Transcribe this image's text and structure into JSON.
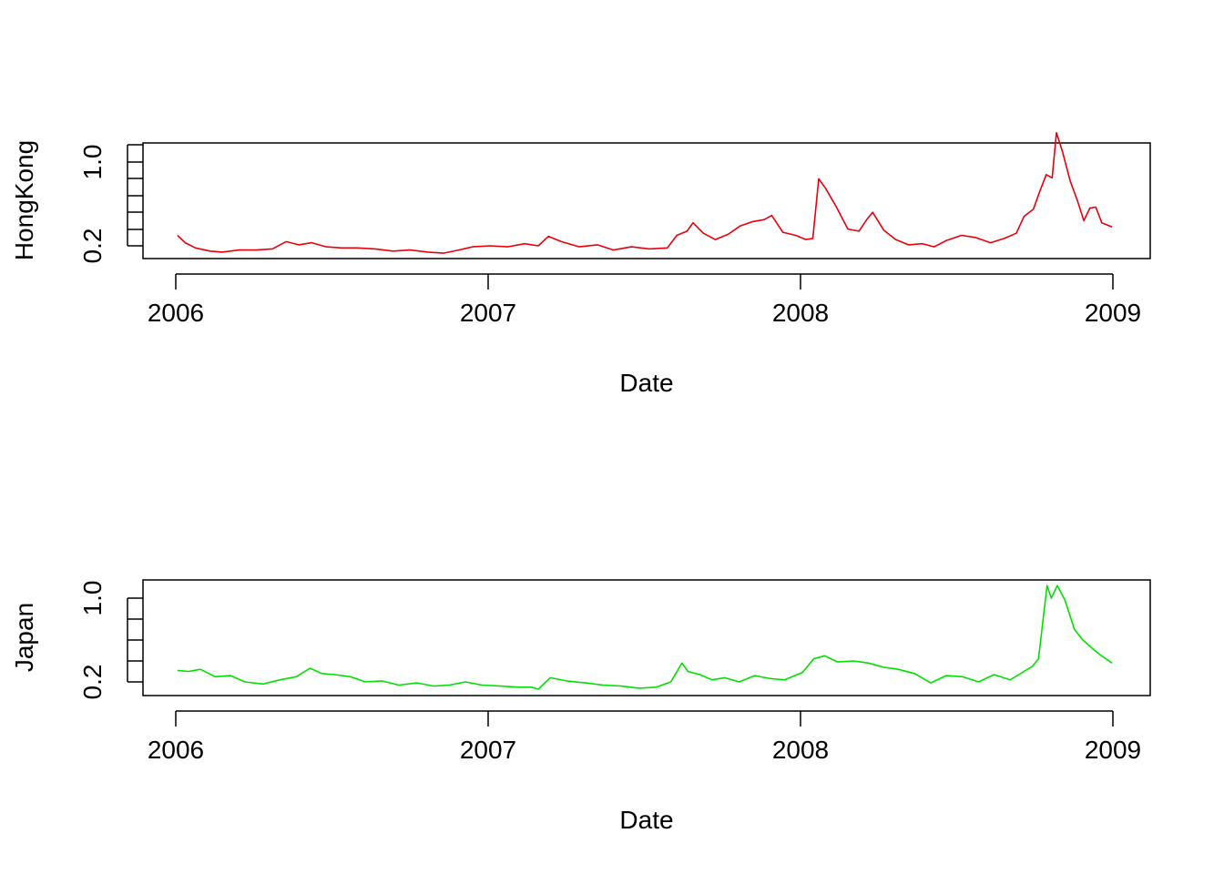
{
  "chart_data": [
    {
      "type": "line",
      "xlabel": "Date",
      "ylabel": "HongKong",
      "x_ticks": [
        "2006",
        "2007",
        "2008",
        "2009"
      ],
      "y_ticks": [
        "0.2",
        "1.0"
      ],
      "ylim": [
        0.1,
        1.3
      ],
      "color": "#e8000b",
      "x": [
        "2006-01-03",
        "2006-01-12",
        "2006-01-24",
        "2006-02-10",
        "2006-02-24",
        "2006-03-16",
        "2006-04-05",
        "2006-04-24",
        "2006-05-10",
        "2006-05-25",
        "2006-06-09",
        "2006-06-26",
        "2006-07-14",
        "2006-08-01",
        "2006-08-22",
        "2006-09-12",
        "2006-10-02",
        "2006-10-23",
        "2006-11-10",
        "2006-11-28",
        "2006-12-14",
        "2007-01-04",
        "2007-01-24",
        "2007-02-13",
        "2007-03-01",
        "2007-03-13",
        "2007-03-28",
        "2007-04-18",
        "2007-05-09",
        "2007-05-28",
        "2007-06-18",
        "2007-07-09",
        "2007-07-30",
        "2007-08-10",
        "2007-08-22",
        "2007-08-29",
        "2007-09-10",
        "2007-09-24",
        "2007-10-09",
        "2007-10-23",
        "2007-11-06",
        "2007-11-20",
        "2007-11-29",
        "2007-12-12",
        "2007-12-27",
        "2008-01-08",
        "2008-01-16",
        "2008-01-23",
        "2008-01-31",
        "2008-02-12",
        "2008-02-26",
        "2008-03-10",
        "2008-03-20",
        "2008-03-26",
        "2008-04-08",
        "2008-04-22",
        "2008-05-07",
        "2008-05-23",
        "2008-06-06",
        "2008-06-20",
        "2008-07-08",
        "2008-07-24",
        "2008-08-11",
        "2008-08-27",
        "2008-09-10",
        "2008-09-19",
        "2008-09-30",
        "2008-10-07",
        "2008-10-15",
        "2008-10-22",
        "2008-10-27",
        "2008-11-03",
        "2008-11-12",
        "2008-11-21",
        "2008-11-28",
        "2008-12-05",
        "2008-12-12",
        "2008-12-19",
        "2008-12-31"
      ],
      "values": [
        0.3,
        0.23,
        0.18,
        0.15,
        0.14,
        0.16,
        0.16,
        0.17,
        0.24,
        0.21,
        0.23,
        0.19,
        0.18,
        0.18,
        0.17,
        0.15,
        0.16,
        0.14,
        0.13,
        0.16,
        0.19,
        0.2,
        0.19,
        0.22,
        0.2,
        0.29,
        0.24,
        0.19,
        0.21,
        0.16,
        0.19,
        0.17,
        0.18,
        0.3,
        0.34,
        0.42,
        0.32,
        0.26,
        0.31,
        0.39,
        0.43,
        0.45,
        0.49,
        0.33,
        0.3,
        0.26,
        0.27,
        0.84,
        0.75,
        0.58,
        0.36,
        0.34,
        0.46,
        0.52,
        0.35,
        0.26,
        0.21,
        0.22,
        0.19,
        0.25,
        0.3,
        0.28,
        0.23,
        0.27,
        0.32,
        0.48,
        0.55,
        0.71,
        0.88,
        0.85,
        1.28,
        1.1,
        0.82,
        0.62,
        0.44,
        0.56,
        0.57,
        0.42,
        0.38
      ]
    },
    {
      "type": "line",
      "xlabel": "Date",
      "ylabel": "Japan",
      "x_ticks": [
        "2006",
        "2007",
        "2008",
        "2009"
      ],
      "y_ticks": [
        "0.2",
        "1.0"
      ],
      "ylim": [
        0.1,
        1.3
      ],
      "color": "#00e000",
      "x": [
        "2006-01-03",
        "2006-01-16",
        "2006-01-30",
        "2006-02-16",
        "2006-03-06",
        "2006-03-23",
        "2006-04-13",
        "2006-05-03",
        "2006-05-22",
        "2006-06-07",
        "2006-06-21",
        "2006-07-06",
        "2006-07-24",
        "2006-08-11",
        "2006-08-30",
        "2006-09-19",
        "2006-10-10",
        "2006-10-30",
        "2006-11-17",
        "2006-12-06",
        "2006-12-25",
        "2007-01-16",
        "2007-02-06",
        "2007-02-21",
        "2007-03-01",
        "2007-03-15",
        "2007-04-03",
        "2007-04-25",
        "2007-05-16",
        "2007-06-06",
        "2007-06-27",
        "2007-07-17",
        "2007-08-03",
        "2007-08-16",
        "2007-08-23",
        "2007-09-06",
        "2007-09-20",
        "2007-10-05",
        "2007-10-22",
        "2007-11-09",
        "2007-11-28",
        "2007-12-14",
        "2008-01-04",
        "2008-01-17",
        "2008-01-30",
        "2008-02-14",
        "2008-03-04",
        "2008-03-21",
        "2008-04-08",
        "2008-04-25",
        "2008-05-14",
        "2008-06-02",
        "2008-06-20",
        "2008-07-09",
        "2008-07-28",
        "2008-08-15",
        "2008-09-03",
        "2008-09-19",
        "2008-09-29",
        "2008-10-06",
        "2008-10-16",
        "2008-10-21",
        "2008-10-28",
        "2008-11-06",
        "2008-11-17",
        "2008-11-27",
        "2008-12-08",
        "2008-12-17",
        "2008-12-31"
      ],
      "values": [
        0.31,
        0.3,
        0.32,
        0.25,
        0.26,
        0.2,
        0.18,
        0.22,
        0.25,
        0.33,
        0.28,
        0.27,
        0.25,
        0.2,
        0.21,
        0.17,
        0.19,
        0.16,
        0.17,
        0.2,
        0.17,
        0.16,
        0.15,
        0.15,
        0.13,
        0.24,
        0.21,
        0.19,
        0.17,
        0.16,
        0.14,
        0.15,
        0.2,
        0.38,
        0.3,
        0.27,
        0.22,
        0.24,
        0.2,
        0.26,
        0.23,
        0.22,
        0.29,
        0.42,
        0.45,
        0.39,
        0.4,
        0.38,
        0.34,
        0.32,
        0.28,
        0.19,
        0.26,
        0.25,
        0.2,
        0.27,
        0.22,
        0.3,
        0.35,
        0.42,
        1.12,
        1.0,
        1.12,
        0.98,
        0.7,
        0.6,
        0.52,
        0.46,
        0.38
      ]
    }
  ]
}
